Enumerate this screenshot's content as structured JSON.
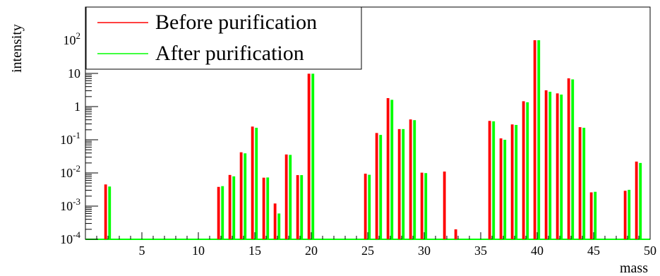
{
  "chart_data": {
    "type": "bar",
    "xlabel": "mass",
    "ylabel": "intensity",
    "ylog": true,
    "xlim": [
      0,
      50
    ],
    "ylim": [
      0.0001,
      1000
    ],
    "x_ticks": [
      5,
      10,
      15,
      20,
      25,
      30,
      35,
      40,
      45,
      50
    ],
    "x_tick_labels": [
      "5",
      "10",
      "15",
      "20",
      "25",
      "30",
      "35",
      "40",
      "45",
      "50"
    ],
    "y_ticks": [
      0.0001,
      0.001,
      0.01,
      0.1,
      1,
      10,
      100
    ],
    "y_tick_labels": [
      {
        "base": "10",
        "exp": "-4"
      },
      {
        "base": "10",
        "exp": "-3"
      },
      {
        "base": "10",
        "exp": "-2"
      },
      {
        "base": "10",
        "exp": "-1"
      },
      {
        "base": "1",
        "exp": ""
      },
      {
        "base": "10",
        "exp": ""
      },
      {
        "base": "10",
        "exp": "2"
      }
    ],
    "legend": {
      "placement": "top-left"
    },
    "grid": false,
    "series": [
      {
        "name": "Before purification",
        "color": "#ff0000",
        "points": [
          [
            2,
            0.0045
          ],
          [
            12,
            0.0038
          ],
          [
            13,
            0.0087
          ],
          [
            14,
            0.042
          ],
          [
            15,
            0.25
          ],
          [
            16,
            0.0072
          ],
          [
            17,
            0.0012
          ],
          [
            18,
            0.036
          ],
          [
            19,
            0.0086
          ],
          [
            20,
            9.8
          ],
          [
            25,
            0.0095
          ],
          [
            26,
            0.16
          ],
          [
            27,
            1.8
          ],
          [
            28,
            0.21
          ],
          [
            29,
            0.41
          ],
          [
            30,
            0.0102
          ],
          [
            32,
            0.011
          ],
          [
            33,
            0.0002
          ],
          [
            36,
            0.37
          ],
          [
            37,
            0.11
          ],
          [
            38,
            0.29
          ],
          [
            39,
            1.45
          ],
          [
            40,
            100
          ],
          [
            41,
            3.1
          ],
          [
            42,
            2.5
          ],
          [
            43,
            7.1
          ],
          [
            44,
            0.24
          ],
          [
            45,
            0.0026
          ],
          [
            48,
            0.0029
          ],
          [
            49,
            0.022
          ]
        ]
      },
      {
        "name": "After purification",
        "color": "#00ff00",
        "points": [
          [
            2,
            0.0039
          ],
          [
            12,
            0.004
          ],
          [
            13,
            0.0079
          ],
          [
            14,
            0.039
          ],
          [
            15,
            0.23
          ],
          [
            16,
            0.0073
          ],
          [
            17,
            0.0006
          ],
          [
            18,
            0.035
          ],
          [
            19,
            0.0086
          ],
          [
            20,
            9.8
          ],
          [
            25,
            0.0088
          ],
          [
            26,
            0.14
          ],
          [
            27,
            1.6
          ],
          [
            28,
            0.21
          ],
          [
            29,
            0.39
          ],
          [
            30,
            0.0099
          ],
          [
            36,
            0.36
          ],
          [
            37,
            0.1
          ],
          [
            38,
            0.28
          ],
          [
            39,
            1.35
          ],
          [
            40,
            100
          ],
          [
            41,
            2.8
          ],
          [
            42,
            2.3
          ],
          [
            43,
            6.6
          ],
          [
            44,
            0.23
          ],
          [
            45,
            0.0027
          ],
          [
            48,
            0.0031
          ],
          [
            49,
            0.02
          ]
        ]
      }
    ]
  }
}
